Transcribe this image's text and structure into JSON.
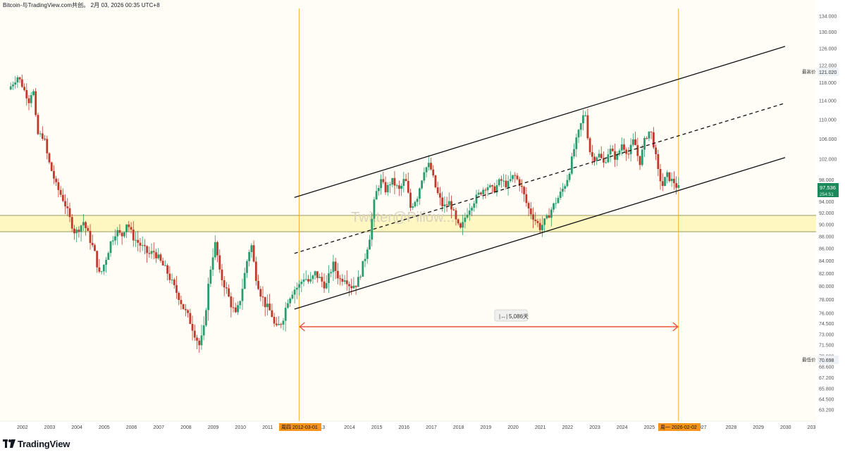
{
  "header": {
    "title": "Bitcoin-与TradingView.com共创。 2月 03, 2026 00:35 UTC+8"
  },
  "watermark": "Twitter@Pillow...",
  "footer": {
    "logo_text": "TradingView",
    "logo_icon": "tradingview-logo-icon"
  },
  "colors": {
    "background": "#fffdf5",
    "up_candle": "#2a9d6f",
    "down_candle": "#c0392b",
    "channel_line": "#111111",
    "support_zone_fill": "#fff7c2",
    "support_zone_border": "#8a8a4a",
    "vertical_marker": "#f5a623",
    "range_arrow": "#e8533d",
    "price_label_bg": "#1b8a5a",
    "date_label_bg": "#f7941d"
  },
  "price_axis": {
    "ticks": [
      "134.000",
      "130.000",
      "126.000",
      "122.000",
      "118.000",
      "114.000",
      "110.000",
      "106.000",
      "102.000",
      "98.000",
      "94.000",
      "92.000",
      "90.000",
      "88.000",
      "86.000",
      "84.000",
      "82.000",
      "80.000",
      "78.000",
      "76.000",
      "74.500",
      "73.000",
      "71.500",
      "70.000",
      "68.600",
      "67.200",
      "65.800",
      "64.500",
      "63.200"
    ],
    "high_label": "最高价",
    "high_value": "121.020",
    "low_label": "最低价",
    "low_value": "70.698",
    "current_price": "97.536",
    "current_sub": "254:51"
  },
  "time_axis": {
    "years": [
      "2002",
      "2003",
      "2004",
      "2005",
      "2006",
      "2007",
      "2008",
      "2009",
      "2010",
      "2011",
      "013",
      "2014",
      "2015",
      "2016",
      "2017",
      "2018",
      "2019",
      "2020",
      "2021",
      "2022",
      "2023",
      "2024",
      "2025",
      "027",
      "2028",
      "2029",
      "2030",
      "203"
    ],
    "marker_start_label": "周四 2012-03-01",
    "marker_end_label": "周一 2026-02-02"
  },
  "annotations": {
    "range_label": "5,086天",
    "range_icon": "date-range-icon"
  },
  "chart_data": {
    "type": "line",
    "title": "",
    "x_start_year": 2001.55,
    "x_end_year": 2026.1,
    "y_scale": "log",
    "y_range": [
      63.2,
      134.0
    ],
    "close_path": [
      [
        2001.55,
        116.5
      ],
      [
        2001.9,
        119.5
      ],
      [
        2002.3,
        114
      ],
      [
        2002.45,
        117
      ],
      [
        2002.6,
        107
      ],
      [
        2002.85,
        106.5
      ],
      [
        2003.0,
        102
      ],
      [
        2003.3,
        97
      ],
      [
        2003.6,
        94
      ],
      [
        2003.8,
        91
      ],
      [
        2004.0,
        88.5
      ],
      [
        2004.3,
        90.5
      ],
      [
        2004.5,
        88
      ],
      [
        2004.7,
        85.5
      ],
      [
        2004.9,
        81.5
      ],
      [
        2005.1,
        84
      ],
      [
        2005.3,
        87
      ],
      [
        2005.5,
        89
      ],
      [
        2005.7,
        88
      ],
      [
        2005.9,
        90.5
      ],
      [
        2006.1,
        88
      ],
      [
        2006.4,
        86.5
      ],
      [
        2006.7,
        85
      ],
      [
        2006.9,
        85.5
      ],
      [
        2007.1,
        84
      ],
      [
        2007.4,
        82
      ],
      [
        2007.6,
        80
      ],
      [
        2007.8,
        78.5
      ],
      [
        2008.0,
        76.5
      ],
      [
        2008.2,
        75
      ],
      [
        2008.4,
        73
      ],
      [
        2008.55,
        71.5
      ],
      [
        2008.7,
        73
      ],
      [
        2008.85,
        79
      ],
      [
        2009.0,
        84
      ],
      [
        2009.15,
        87
      ],
      [
        2009.3,
        82
      ],
      [
        2009.5,
        80
      ],
      [
        2009.7,
        77.5
      ],
      [
        2009.9,
        75.5
      ],
      [
        2010.1,
        79
      ],
      [
        2010.3,
        84
      ],
      [
        2010.45,
        87
      ],
      [
        2010.6,
        82
      ],
      [
        2010.8,
        79
      ],
      [
        2011.0,
        77
      ],
      [
        2011.2,
        76
      ],
      [
        2011.35,
        73.5
      ],
      [
        2011.6,
        75
      ],
      [
        2011.8,
        78
      ],
      [
        2012.0,
        79.5
      ],
      [
        2012.2,
        80
      ],
      [
        2012.4,
        81.5
      ],
      [
        2012.6,
        80.5
      ],
      [
        2012.8,
        82
      ],
      [
        2013.0,
        81
      ],
      [
        2013.2,
        80
      ],
      [
        2013.45,
        83.5
      ],
      [
        2013.7,
        81
      ],
      [
        2013.9,
        81.5
      ],
      [
        2014.1,
        80
      ],
      [
        2014.35,
        80.5
      ],
      [
        2014.6,
        84
      ],
      [
        2014.8,
        88
      ],
      [
        2015.0,
        95
      ],
      [
        2015.2,
        98
      ],
      [
        2015.4,
        96
      ],
      [
        2015.6,
        98
      ],
      [
        2015.9,
        96
      ],
      [
        2016.1,
        98.5
      ],
      [
        2016.3,
        93
      ],
      [
        2016.55,
        95
      ],
      [
        2016.8,
        100
      ],
      [
        2017.0,
        101
      ],
      [
        2017.25,
        96
      ],
      [
        2017.5,
        93
      ],
      [
        2017.75,
        94
      ],
      [
        2018.0,
        90
      ],
      [
        2018.15,
        89
      ],
      [
        2018.35,
        92
      ],
      [
        2018.6,
        94
      ],
      [
        2018.9,
        96
      ],
      [
        2019.1,
        97
      ],
      [
        2019.35,
        96
      ],
      [
        2019.6,
        98
      ],
      [
        2019.85,
        97
      ],
      [
        2020.1,
        99
      ],
      [
        2020.35,
        97
      ],
      [
        2020.6,
        93
      ],
      [
        2020.85,
        91
      ],
      [
        2021.05,
        89.5
      ],
      [
        2021.3,
        91
      ],
      [
        2021.5,
        93
      ],
      [
        2021.75,
        95
      ],
      [
        2021.95,
        97
      ],
      [
        2022.1,
        99
      ],
      [
        2022.3,
        104
      ],
      [
        2022.5,
        108
      ],
      [
        2022.7,
        112
      ],
      [
        2022.85,
        104
      ],
      [
        2023.0,
        102
      ],
      [
        2023.2,
        103
      ],
      [
        2023.4,
        101
      ],
      [
        2023.6,
        104
      ],
      [
        2023.85,
        102
      ],
      [
        2024.05,
        105
      ],
      [
        2024.3,
        103
      ],
      [
        2024.5,
        106
      ],
      [
        2024.7,
        101
      ],
      [
        2024.9,
        106
      ],
      [
        2025.1,
        108
      ],
      [
        2025.25,
        104
      ],
      [
        2025.4,
        99
      ],
      [
        2025.55,
        97
      ],
      [
        2025.7,
        99
      ],
      [
        2025.85,
        98
      ],
      [
        2026.0,
        97.5
      ],
      [
        2026.08,
        96.5
      ]
    ],
    "upper_channel": [
      [
        2012.0,
        94.8
      ],
      [
        2030.0,
        126.5
      ]
    ],
    "mid_channel": [
      [
        2012.0,
        85.2
      ],
      [
        2030.0,
        113.5
      ]
    ],
    "lower_channel": [
      [
        2012.0,
        76.6
      ],
      [
        2030.0,
        102.3
      ]
    ],
    "support_zone": [
      88.8,
      91.6
    ],
    "range_days": 5086,
    "ylabel": "",
    "xlabel": ""
  }
}
